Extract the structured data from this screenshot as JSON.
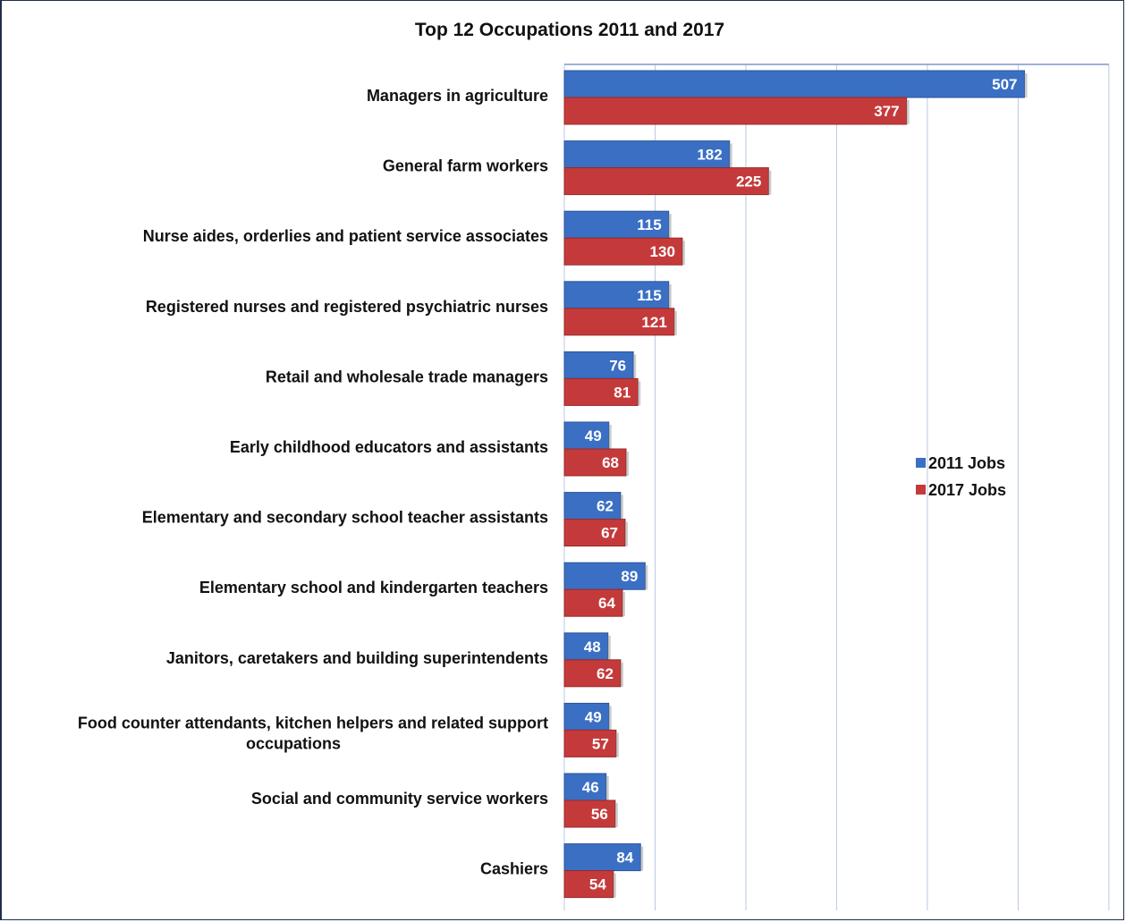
{
  "chart_data": {
    "type": "bar",
    "orientation": "horizontal",
    "title": "Top 12 Occupations 2011 and 2017",
    "categories": [
      "Managers in agriculture",
      "General farm workers",
      "Nurse aides, orderlies and patient service associates",
      "Registered nurses and registered psychiatric nurses",
      "Retail and wholesale trade managers",
      "Early childhood educators and assistants",
      "Elementary and secondary school teacher assistants",
      "Elementary school and kindergarten teachers",
      "Janitors, caretakers and building superintendents",
      "Food counter attendants, kitchen helpers and related support occupations",
      "Social and community service workers",
      "Cashiers"
    ],
    "series": [
      {
        "name": "2011 Jobs",
        "color": "#3a6fc4",
        "values": [
          507,
          182,
          115,
          115,
          76,
          49,
          62,
          89,
          48,
          49,
          46,
          84
        ]
      },
      {
        "name": "2017 Jobs",
        "color": "#c43a3a",
        "values": [
          377,
          225,
          130,
          121,
          81,
          68,
          67,
          64,
          62,
          57,
          56,
          54
        ]
      }
    ],
    "xlim": [
      0,
      600
    ],
    "grid": true,
    "legend_position": "right"
  }
}
